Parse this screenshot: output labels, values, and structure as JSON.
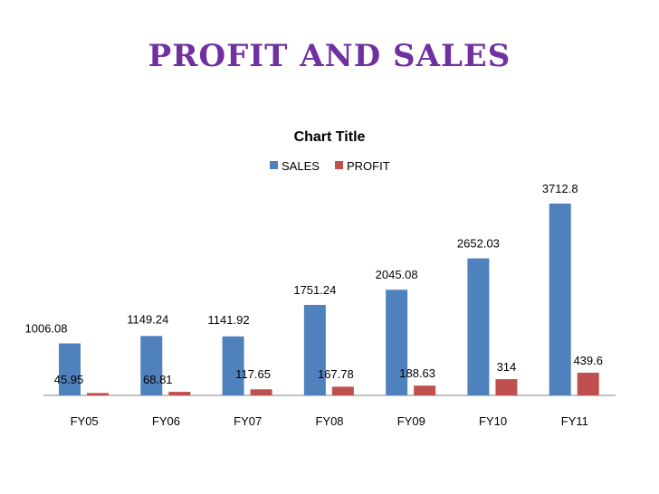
{
  "slide": {
    "title": "PROFIT AND SALES",
    "title_color": "#7030A0"
  },
  "chart_data": {
    "type": "bar",
    "title": "Chart Title",
    "categories": [
      "FY05",
      "FY06",
      "FY07",
      "FY08",
      "FY09",
      "FY10",
      "FY11"
    ],
    "series": [
      {
        "name": "SALES",
        "color": "#4F81BD",
        "values": [
          1006.08,
          1149.24,
          1141.92,
          1751.24,
          2045.08,
          2652.03,
          3712.8
        ],
        "labels": [
          "1006.08",
          "1149.24",
          "1141.92",
          "1751.24",
          "2045.08",
          "2652.03",
          "3712.8"
        ]
      },
      {
        "name": "PROFIT",
        "color": "#C0504D",
        "values": [
          45.95,
          68.81,
          117.65,
          167.78,
          188.63,
          314,
          439.6
        ],
        "labels": [
          "45.95",
          "68.81",
          "117.65",
          "167.78",
          "188.63",
          "314",
          "439.6"
        ]
      }
    ],
    "xlabel": "",
    "ylabel": "",
    "ylim": [
      0,
      3800
    ],
    "grid": false,
    "legend": "top"
  }
}
